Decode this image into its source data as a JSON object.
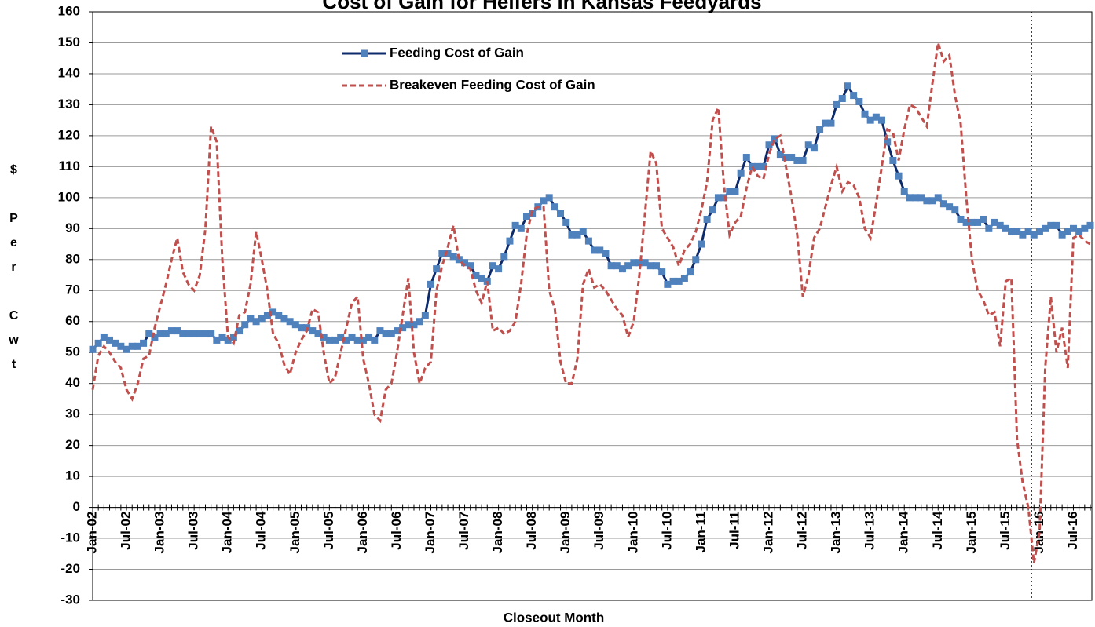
{
  "chart_data": {
    "type": "line",
    "title": "Cost of Gain for Heifers in Kansas Feedyards",
    "x_label": "Closeout Month",
    "y_label": "$ Per Cwt",
    "categories": [
      "Jan-02",
      null,
      null,
      null,
      null,
      null,
      "Jul-02",
      null,
      null,
      null,
      null,
      null,
      "Jan-03",
      null,
      null,
      null,
      null,
      null,
      "Jul-03",
      null,
      null,
      null,
      null,
      null,
      "Jan-04",
      null,
      null,
      null,
      null,
      null,
      "Jul-04",
      null,
      null,
      null,
      null,
      null,
      "Jan-05",
      null,
      null,
      null,
      null,
      null,
      "Jul-05",
      null,
      null,
      null,
      null,
      null,
      "Jan-06",
      null,
      null,
      null,
      null,
      null,
      "Jul-06",
      null,
      null,
      null,
      null,
      null,
      "Jan-07",
      null,
      null,
      null,
      null,
      null,
      "Jul-07",
      null,
      null,
      null,
      null,
      null,
      "Jan-08",
      null,
      null,
      null,
      null,
      null,
      "Jul-08",
      null,
      null,
      null,
      null,
      null,
      "Jan-09",
      null,
      null,
      null,
      null,
      null,
      "Jul-09",
      null,
      null,
      null,
      null,
      null,
      "Jan-10",
      null,
      null,
      null,
      null,
      null,
      "Jul-10",
      null,
      null,
      null,
      null,
      null,
      "Jan-11",
      null,
      null,
      null,
      null,
      null,
      "Jul-11",
      null,
      null,
      null,
      null,
      null,
      "Jan-12",
      null,
      null,
      null,
      null,
      null,
      "Jul-12",
      null,
      null,
      null,
      null,
      null,
      "Jan-13",
      null,
      null,
      null,
      null,
      null,
      "Jul-13",
      null,
      null,
      null,
      null,
      null,
      "Jan-14",
      null,
      null,
      null,
      null,
      null,
      "Jul-14",
      null,
      null,
      null,
      null,
      null,
      "Jan-15",
      null,
      null,
      null,
      null,
      null,
      "Jul-15",
      null,
      null,
      null,
      null,
      null,
      "Jan-16",
      null,
      null,
      null,
      null,
      null,
      "Jul-16",
      null,
      null,
      null
    ],
    "series": [
      {
        "name": "Feeding Cost of Gain",
        "color": "#0d2a6b",
        "marker_color": "#4f81bd",
        "marker": "square",
        "dash": false,
        "values": [
          51,
          53,
          55,
          54,
          53,
          52,
          51,
          52,
          52,
          53,
          56,
          55,
          56,
          56,
          57,
          57,
          56,
          56,
          56,
          56,
          56,
          56,
          54,
          55,
          54,
          55,
          57,
          59,
          61,
          60,
          61,
          62,
          63,
          62,
          61,
          60,
          59,
          58,
          58,
          57,
          56,
          55,
          54,
          54,
          55,
          54,
          55,
          54,
          54,
          55,
          54,
          57,
          56,
          56,
          57,
          58,
          59,
          59,
          60,
          62,
          72,
          77,
          82,
          82,
          81,
          80,
          79,
          78,
          75,
          74,
          73,
          78,
          77,
          81,
          86,
          91,
          90,
          94,
          95,
          97,
          99,
          100,
          97,
          95,
          92,
          88,
          88,
          89,
          86,
          83,
          83,
          82,
          78,
          78,
          77,
          78,
          79,
          79,
          79,
          78,
          78,
          76,
          72,
          73,
          73,
          74,
          76,
          80,
          85,
          93,
          96,
          100,
          100,
          102,
          102,
          108,
          113,
          110,
          110,
          110,
          117,
          119,
          114,
          113,
          113,
          112,
          112,
          117,
          116,
          122,
          124,
          124,
          130,
          132,
          136,
          133,
          131,
          127,
          125,
          126,
          125,
          118,
          112,
          107,
          102,
          100,
          100,
          100,
          99,
          99,
          100,
          98,
          97,
          96,
          93,
          92,
          92,
          92,
          93,
          90,
          92,
          91,
          90,
          89,
          89,
          88,
          89,
          88,
          89,
          90,
          91,
          91,
          88,
          89,
          90,
          89,
          90,
          91
        ]
      },
      {
        "name": "Breakeven Feeding Cost of Gain",
        "color": "#c0504d",
        "dash": true,
        "values": [
          38,
          49,
          52,
          50,
          47,
          45,
          38,
          35,
          40,
          48,
          49,
          58,
          65,
          72,
          80,
          87,
          76,
          72,
          70,
          75,
          90,
          123,
          118,
          80,
          55,
          53,
          62,
          63,
          72,
          89,
          80,
          70,
          56,
          53,
          46,
          43,
          50,
          54,
          57,
          64,
          63,
          50,
          40,
          42,
          50,
          58,
          66,
          68,
          48,
          40,
          30,
          28,
          38,
          40,
          50,
          62,
          74,
          50,
          40,
          45,
          47,
          70,
          78,
          84,
          91,
          80,
          78,
          77,
          70,
          66,
          73,
          57,
          58,
          56,
          57,
          60,
          72,
          88,
          96,
          97,
          97,
          70,
          64,
          47,
          40,
          40,
          48,
          72,
          77,
          71,
          72,
          70,
          67,
          64,
          62,
          55,
          60,
          75,
          95,
          115,
          111,
          90,
          87,
          84,
          78,
          83,
          85,
          89,
          96,
          105,
          125,
          129,
          104,
          88,
          92,
          94,
          103,
          110,
          107,
          106,
          114,
          119,
          120,
          110,
          100,
          88,
          68,
          75,
          87,
          90,
          97,
          104,
          110,
          102,
          105,
          104,
          100,
          90,
          87,
          98,
          110,
          122,
          121,
          112,
          122,
          130,
          129,
          126,
          123,
          137,
          150,
          144,
          146,
          133,
          124,
          100,
          80,
          70,
          67,
          62,
          63,
          52,
          73,
          74,
          22,
          8,
          0,
          -18,
          -8,
          45,
          68,
          50,
          58,
          45,
          87,
          88,
          86,
          85
        ]
      }
    ],
    "ylim": [
      -30,
      160
    ],
    "yticks": [
      -30,
      -20,
      -10,
      0,
      10,
      20,
      30,
      40,
      50,
      60,
      70,
      80,
      90,
      100,
      110,
      120,
      130,
      140,
      150,
      160
    ],
    "grid": true
  }
}
